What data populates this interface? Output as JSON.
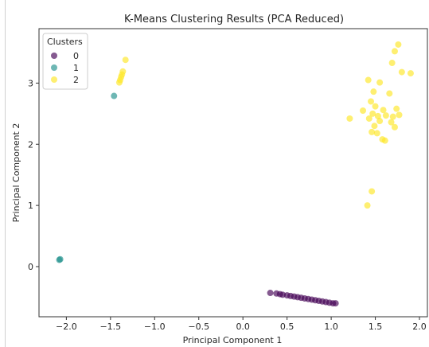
{
  "chart_data": {
    "type": "scatter",
    "title": "K-Means Clustering Results (PCA Reduced)",
    "xlabel": "Principal Component 1",
    "ylabel": "Principal Component 2",
    "xlim": [
      -2.31,
      2.09
    ],
    "ylim": [
      -0.82,
      3.89
    ],
    "x_ticks": [
      -2.0,
      -1.5,
      -1.0,
      -0.5,
      0.0,
      0.5,
      1.0,
      1.5,
      2.0
    ],
    "x_tick_labels": [
      "−2.0",
      "−1.5",
      "−1.0",
      "−0.5",
      "0.0",
      "0.5",
      "1.0",
      "1.5",
      "2.0"
    ],
    "y_ticks": [
      0,
      1,
      2,
      3
    ],
    "y_tick_labels": [
      "0",
      "1",
      "2",
      "3"
    ],
    "grid": false,
    "legend": {
      "title": "Clusters",
      "placement": "top-left"
    },
    "series": [
      {
        "name": "0",
        "color": "#440154",
        "points": [
          [
            0.31,
            -0.43
          ],
          [
            0.38,
            -0.44
          ],
          [
            0.42,
            -0.45
          ],
          [
            0.45,
            -0.46
          ],
          [
            0.5,
            -0.47
          ],
          [
            0.54,
            -0.48
          ],
          [
            0.58,
            -0.49
          ],
          [
            0.62,
            -0.5
          ],
          [
            0.66,
            -0.51
          ],
          [
            0.7,
            -0.52
          ],
          [
            0.74,
            -0.53
          ],
          [
            0.78,
            -0.54
          ],
          [
            0.82,
            -0.55
          ],
          [
            0.86,
            -0.56
          ],
          [
            0.9,
            -0.57
          ],
          [
            0.94,
            -0.58
          ],
          [
            0.98,
            -0.59
          ],
          [
            1.02,
            -0.6
          ],
          [
            1.05,
            -0.6
          ]
        ]
      },
      {
        "name": "1",
        "color": "#21918c",
        "points": [
          [
            -2.07,
            0.12
          ],
          [
            -2.08,
            0.11
          ],
          [
            -1.46,
            2.79
          ]
        ]
      },
      {
        "name": "2",
        "color": "#fde725",
        "points": [
          [
            -1.33,
            3.38
          ],
          [
            -1.36,
            3.19
          ],
          [
            -1.37,
            3.14
          ],
          [
            -1.38,
            3.1
          ],
          [
            -1.39,
            3.05
          ],
          [
            -1.4,
            3.01
          ],
          [
            1.76,
            3.63
          ],
          [
            1.72,
            3.52
          ],
          [
            1.69,
            3.33
          ],
          [
            1.8,
            3.18
          ],
          [
            1.9,
            3.16
          ],
          [
            1.42,
            3.05
          ],
          [
            1.55,
            3.01
          ],
          [
            1.48,
            2.86
          ],
          [
            1.66,
            2.83
          ],
          [
            1.36,
            2.55
          ],
          [
            1.45,
            2.7
          ],
          [
            1.5,
            2.62
          ],
          [
            1.59,
            2.56
          ],
          [
            1.74,
            2.58
          ],
          [
            1.47,
            2.5
          ],
          [
            1.53,
            2.46
          ],
          [
            1.62,
            2.47
          ],
          [
            1.7,
            2.45
          ],
          [
            1.77,
            2.48
          ],
          [
            1.43,
            2.42
          ],
          [
            1.55,
            2.38
          ],
          [
            1.68,
            2.36
          ],
          [
            1.21,
            2.42
          ],
          [
            1.49,
            2.3
          ],
          [
            1.72,
            2.28
          ],
          [
            1.46,
            2.2
          ],
          [
            1.52,
            2.18
          ],
          [
            1.58,
            2.08
          ],
          [
            1.61,
            2.06
          ],
          [
            1.46,
            1.23
          ],
          [
            1.41,
            1.0
          ]
        ]
      }
    ]
  }
}
